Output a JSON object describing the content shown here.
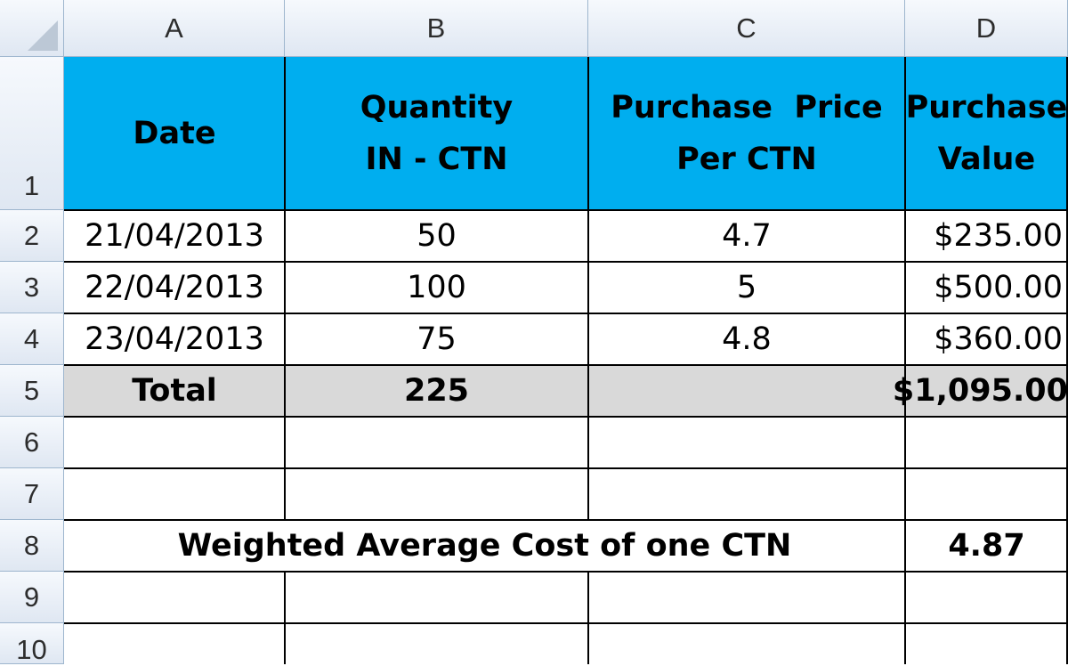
{
  "columns": [
    "A",
    "B",
    "C",
    "D"
  ],
  "rows": [
    "1",
    "2",
    "3",
    "4",
    "5",
    "6",
    "7",
    "8",
    "9",
    "10"
  ],
  "table": {
    "header": {
      "date": "Date",
      "quantity_line1": "Quantity",
      "quantity_line2": "IN - CTN",
      "price_line1": "Purchase  Price",
      "price_line2": "Per CTN",
      "value_line1": "Purchase",
      "value_line2": "Value"
    },
    "records": [
      {
        "date": "21/04/2013",
        "quantity": "50",
        "price": "4.7",
        "value": "$235.00"
      },
      {
        "date": "22/04/2013",
        "quantity": "100",
        "price": "5",
        "value": "$500.00"
      },
      {
        "date": "23/04/2013",
        "quantity": "75",
        "price": "4.8",
        "value": "$360.00"
      }
    ],
    "total": {
      "label": "Total",
      "quantity": "225",
      "value": "$1,095.00"
    }
  },
  "weighted_average": {
    "label": "Weighted Average Cost of one CTN",
    "value": "4.87"
  },
  "colors": {
    "header_fill": "#00aeef",
    "total_fill": "#d9d9d9",
    "grid_border": "#000000"
  }
}
